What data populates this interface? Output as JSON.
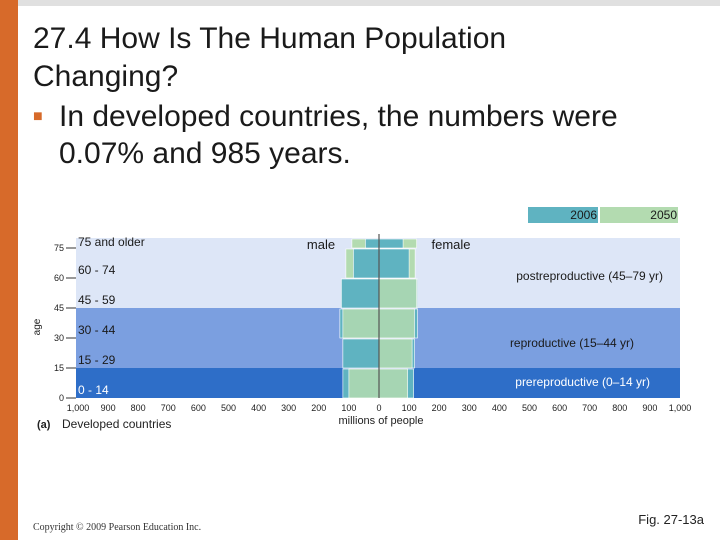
{
  "slide": {
    "title_line1": "27.4 How Is The Human Population",
    "title_line2": "Changing?",
    "bullet_text": "In developed countries, the numbers were 0.07% and 985 years.",
    "copyright": "Copyright © 2009 Pearson Education Inc.",
    "figure_ref": "Fig. 27-13a",
    "accent_color": "#d76a2a"
  },
  "chart_data": {
    "type": "bar",
    "orientation": "horizontal-population-pyramid",
    "ylabel": "age",
    "xlabel": "millions of people",
    "panel_label": "(a)",
    "panel_caption": "Developed countries",
    "side_labels": {
      "left": "male",
      "right": "female"
    },
    "y_ticks": [
      "75",
      "60",
      "45",
      "30",
      "15",
      "0"
    ],
    "age_groups": [
      "0 - 14",
      "15 - 29",
      "30 - 44",
      "45 - 59",
      "60 - 74",
      "75 and older"
    ],
    "x_tick_labels": [
      "1,000",
      "900",
      "800",
      "700",
      "600",
      "500",
      "400",
      "300",
      "200",
      "100",
      "0",
      "100",
      "200",
      "300",
      "400",
      "500",
      "600",
      "700",
      "800",
      "900",
      "1,000"
    ],
    "xlim": [
      -1000,
      1000
    ],
    "series": [
      {
        "name": "2006",
        "color": "#5fb3c1",
        "male": [
          120,
          120,
          130,
          125,
          85,
          45
        ],
        "female": [
          115,
          118,
          128,
          128,
          100,
          80
        ]
      },
      {
        "name": "2050",
        "color": "#b3dbb0",
        "male": [
          100,
          120,
          120,
          125,
          110,
          90
        ],
        "female": [
          95,
          110,
          118,
          125,
          120,
          125
        ]
      }
    ],
    "life_stages": [
      {
        "label": "prereproductive (0–14 yr)",
        "from": 0,
        "to": 15,
        "color": "#2e6ec8"
      },
      {
        "label": "reproductive (15–44 yr)",
        "from": 15,
        "to": 45,
        "color": "#7b9fe0"
      },
      {
        "label": "postreproductive (45–79 yr)",
        "from": 45,
        "to": 80,
        "color": "#dde6f7"
      }
    ],
    "legend_position": "top-right",
    "grid": false
  }
}
